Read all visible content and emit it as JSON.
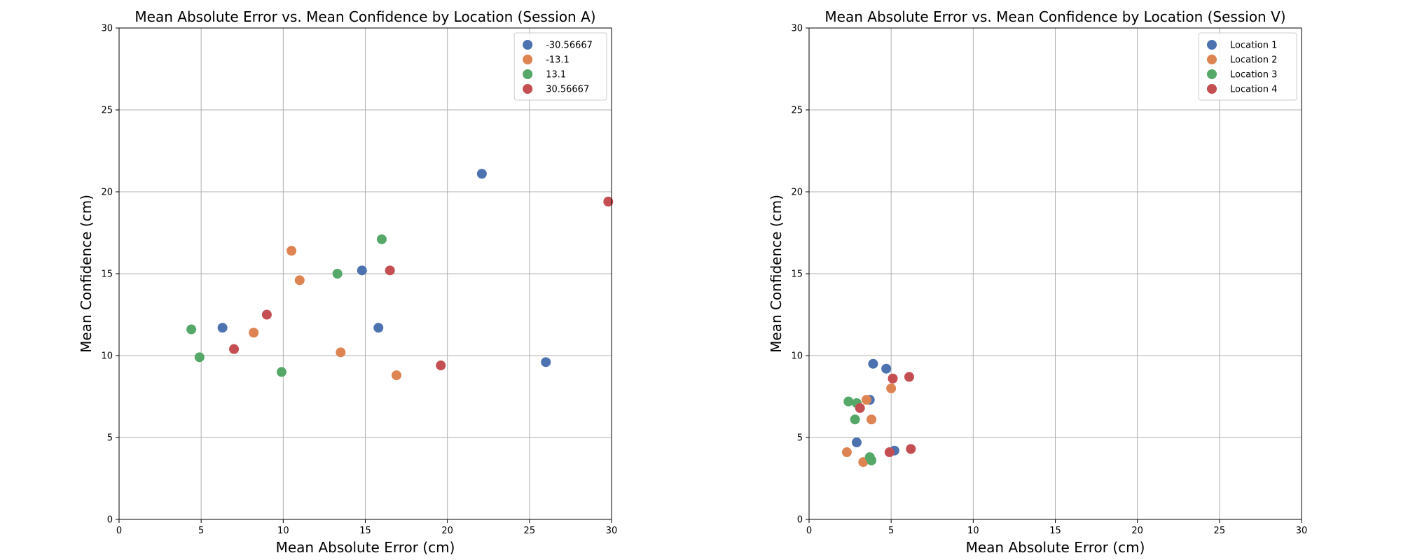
{
  "chart_data": [
    {
      "type": "scatter",
      "title": "Mean Absolute Error vs. Mean Confidence by Location (Session A)",
      "xlabel": "Mean Absolute Error (cm)",
      "ylabel": "Mean Confidence (cm)",
      "xlim": [
        0,
        30
      ],
      "ylim": [
        0,
        30
      ],
      "xticks": [
        "0",
        "5",
        "10",
        "15",
        "20",
        "25",
        "30"
      ],
      "yticks": [
        "0",
        "5",
        "10",
        "15",
        "20",
        "25",
        "30"
      ],
      "grid": true,
      "legend_position": "top-right",
      "series": [
        {
          "name": "-30.56667",
          "color": "#4c72b0",
          "points": [
            [
              6.3,
              11.7
            ],
            [
              14.8,
              15.2
            ],
            [
              15.8,
              11.7
            ],
            [
              22.1,
              21.1
            ],
            [
              26.0,
              9.6
            ]
          ]
        },
        {
          "name": "-13.1",
          "color": "#dd8452",
          "points": [
            [
              8.2,
              11.4
            ],
            [
              10.5,
              16.4
            ],
            [
              11.0,
              14.6
            ],
            [
              13.5,
              10.2
            ],
            [
              16.9,
              8.8
            ]
          ]
        },
        {
          "name": "13.1",
          "color": "#55a868",
          "points": [
            [
              4.4,
              11.6
            ],
            [
              4.9,
              9.9
            ],
            [
              9.9,
              9.0
            ],
            [
              13.3,
              15.0
            ],
            [
              16.0,
              17.1
            ]
          ]
        },
        {
          "name": "30.56667",
          "color": "#c44e52",
          "points": [
            [
              7.0,
              10.4
            ],
            [
              9.0,
              12.5
            ],
            [
              16.5,
              15.2
            ],
            [
              19.6,
              9.4
            ],
            [
              29.8,
              19.4
            ]
          ]
        }
      ]
    },
    {
      "type": "scatter",
      "title": "Mean Absolute Error vs. Mean Confidence by Location (Session V)",
      "xlabel": "Mean Absolute Error (cm)",
      "ylabel": "Mean Confidence (cm)",
      "xlim": [
        0,
        30
      ],
      "ylim": [
        0,
        30
      ],
      "xticks": [
        "0",
        "5",
        "10",
        "15",
        "20",
        "25",
        "30"
      ],
      "yticks": [
        "0",
        "5",
        "10",
        "15",
        "20",
        "25",
        "30"
      ],
      "grid": true,
      "legend_position": "top-right",
      "series": [
        {
          "name": "Location 1",
          "color": "#4c72b0",
          "points": [
            [
              2.9,
              4.7
            ],
            [
              3.7,
              7.3
            ],
            [
              3.9,
              9.5
            ],
            [
              4.7,
              9.2
            ],
            [
              5.2,
              4.2
            ]
          ]
        },
        {
          "name": "Location 2",
          "color": "#dd8452",
          "points": [
            [
              2.3,
              4.1
            ],
            [
              3.3,
              3.5
            ],
            [
              3.5,
              7.3
            ],
            [
              3.8,
              6.1
            ],
            [
              5.0,
              8.0
            ]
          ]
        },
        {
          "name": "Location 3",
          "color": "#55a868",
          "points": [
            [
              2.4,
              7.2
            ],
            [
              2.8,
              6.1
            ],
            [
              2.9,
              7.1
            ],
            [
              3.7,
              3.8
            ],
            [
              3.8,
              3.6
            ]
          ]
        },
        {
          "name": "Location 4",
          "color": "#c44e52",
          "points": [
            [
              3.1,
              6.8
            ],
            [
              4.9,
              4.1
            ],
            [
              5.1,
              8.6
            ],
            [
              6.1,
              8.7
            ],
            [
              6.2,
              4.3
            ]
          ]
        }
      ]
    }
  ]
}
